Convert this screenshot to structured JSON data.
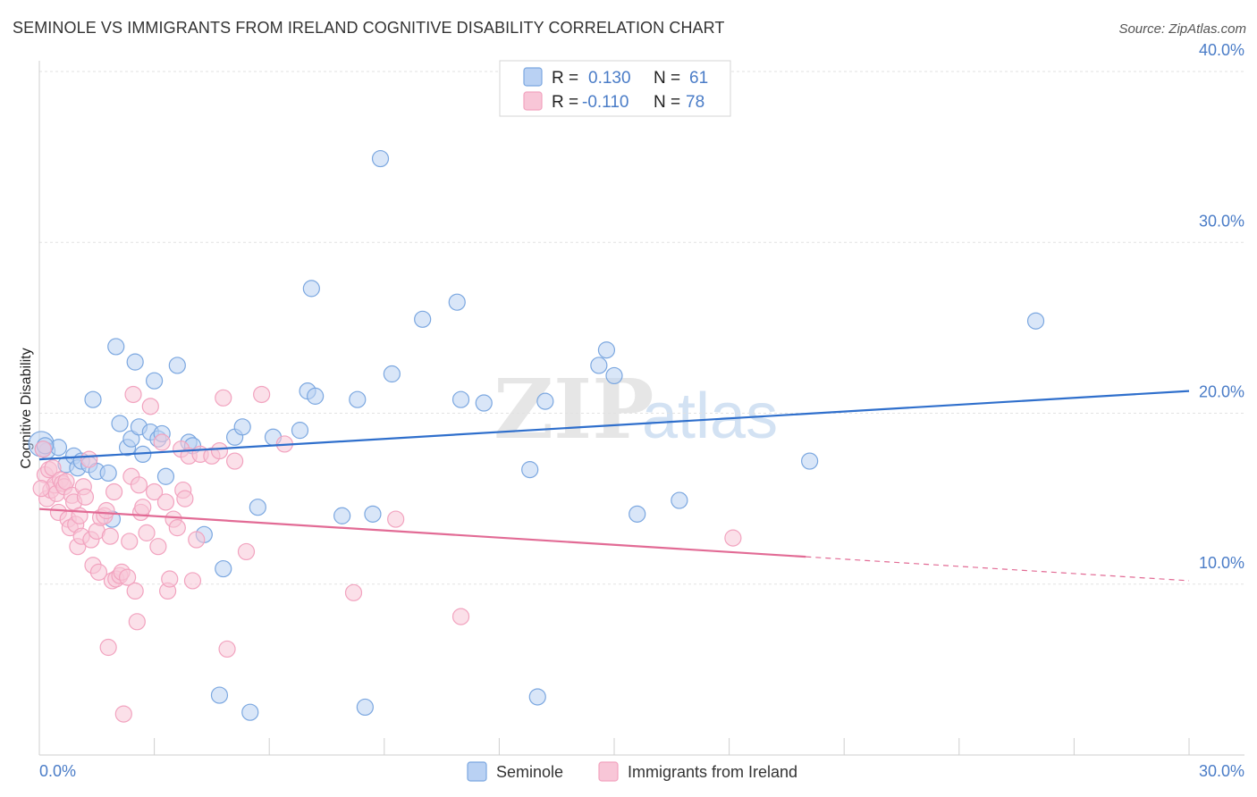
{
  "chart_data": {
    "type": "scatter",
    "title": "SEMINOLE VS IMMIGRANTS FROM IRELAND COGNITIVE DISABILITY CORRELATION CHART",
    "source": "Source: ZipAtlas.com",
    "xlabel": "",
    "ylabel": "Cognitive Disability",
    "xlim": [
      0,
      30
    ],
    "ylim": [
      0,
      40
    ],
    "x_tick_labels": [
      "0.0%",
      "30.0%"
    ],
    "y_ticks": [
      10,
      20,
      30,
      40
    ],
    "y_tick_labels": [
      "10.0%",
      "20.0%",
      "30.0%",
      "40.0%"
    ],
    "grid": true,
    "watermark": {
      "zip": "ZIP",
      "atlas": "atlas"
    },
    "legend_top": [
      {
        "r_label": "R =",
        "r_value": "0.130",
        "n_label": "N =",
        "n_value": "61"
      },
      {
        "r_label": "R =",
        "r_value": "-0.110",
        "n_label": "N =",
        "n_value": "78"
      }
    ],
    "series": [
      {
        "name": "Seminole",
        "color": "#7ba7e0",
        "line_color": "#2f6fcc",
        "trend": {
          "x0": 0,
          "y0": 17.3,
          "x1": 30,
          "y1": 21.3
        },
        "points": [
          [
            0.05,
            18.2
          ],
          [
            0.2,
            17.8
          ],
          [
            0.5,
            18.0
          ],
          [
            0.7,
            17.0
          ],
          [
            0.9,
            17.5
          ],
          [
            1.0,
            16.8
          ],
          [
            1.1,
            17.2
          ],
          [
            1.3,
            17.0
          ],
          [
            1.4,
            20.8
          ],
          [
            1.5,
            16.6
          ],
          [
            1.8,
            16.5
          ],
          [
            1.9,
            13.8
          ],
          [
            2.0,
            23.9
          ],
          [
            2.1,
            19.4
          ],
          [
            2.3,
            18.0
          ],
          [
            2.4,
            18.5
          ],
          [
            2.5,
            23.0
          ],
          [
            2.6,
            19.2
          ],
          [
            2.7,
            17.6
          ],
          [
            2.9,
            18.9
          ],
          [
            3.0,
            21.9
          ],
          [
            3.1,
            18.5
          ],
          [
            3.2,
            18.8
          ],
          [
            3.3,
            16.3
          ],
          [
            3.6,
            22.8
          ],
          [
            3.9,
            18.3
          ],
          [
            4.0,
            18.1
          ],
          [
            4.3,
            12.9
          ],
          [
            4.7,
            3.5
          ],
          [
            4.8,
            10.9
          ],
          [
            5.1,
            18.6
          ],
          [
            5.3,
            19.2
          ],
          [
            5.5,
            2.5
          ],
          [
            5.7,
            14.5
          ],
          [
            6.1,
            18.6
          ],
          [
            6.8,
            19.0
          ],
          [
            7.0,
            21.3
          ],
          [
            7.1,
            27.3
          ],
          [
            7.2,
            21.0
          ],
          [
            7.9,
            14.0
          ],
          [
            8.3,
            20.8
          ],
          [
            8.5,
            2.8
          ],
          [
            8.7,
            14.1
          ],
          [
            8.9,
            34.9
          ],
          [
            9.2,
            22.3
          ],
          [
            10.0,
            25.5
          ],
          [
            10.9,
            26.5
          ],
          [
            11.0,
            20.8
          ],
          [
            11.6,
            20.6
          ],
          [
            12.8,
            16.7
          ],
          [
            13.0,
            3.4
          ],
          [
            13.2,
            20.7
          ],
          [
            14.6,
            22.8
          ],
          [
            14.8,
            23.7
          ],
          [
            15.0,
            22.2
          ],
          [
            15.6,
            14.1
          ],
          [
            16.7,
            14.9
          ],
          [
            20.1,
            17.2
          ],
          [
            26.0,
            25.4
          ],
          [
            0.1,
            17.9
          ],
          [
            0.15,
            18.1
          ]
        ]
      },
      {
        "name": "Immigrants from Ireland",
        "color": "#f2a3bf",
        "line_color": "#e26b95",
        "trend": {
          "x0": 0,
          "y0": 14.4,
          "x1": 20.0,
          "y1": 11.6
        },
        "trend_dash": {
          "x0": 20.0,
          "y0": 11.6,
          "x1": 30,
          "y1": 10.2
        },
        "points": [
          [
            0.1,
            17.9
          ],
          [
            0.15,
            16.4
          ],
          [
            0.2,
            15.0
          ],
          [
            0.25,
            16.7
          ],
          [
            0.3,
            15.5
          ],
          [
            0.35,
            16.8
          ],
          [
            0.4,
            15.8
          ],
          [
            0.45,
            15.3
          ],
          [
            0.5,
            14.2
          ],
          [
            0.55,
            16.1
          ],
          [
            0.6,
            15.9
          ],
          [
            0.65,
            15.7
          ],
          [
            0.7,
            16.0
          ],
          [
            0.75,
            13.8
          ],
          [
            0.8,
            13.3
          ],
          [
            0.85,
            15.2
          ],
          [
            0.9,
            14.8
          ],
          [
            0.95,
            13.5
          ],
          [
            1.0,
            12.2
          ],
          [
            1.05,
            14.0
          ],
          [
            1.1,
            12.8
          ],
          [
            1.15,
            15.7
          ],
          [
            1.2,
            15.1
          ],
          [
            1.3,
            17.3
          ],
          [
            1.35,
            12.6
          ],
          [
            1.4,
            11.1
          ],
          [
            1.5,
            13.1
          ],
          [
            1.55,
            10.7
          ],
          [
            1.6,
            13.9
          ],
          [
            1.7,
            14.0
          ],
          [
            1.75,
            14.3
          ],
          [
            1.8,
            6.3
          ],
          [
            1.85,
            12.8
          ],
          [
            1.9,
            10.2
          ],
          [
            1.95,
            15.4
          ],
          [
            2.0,
            10.3
          ],
          [
            2.1,
            10.5
          ],
          [
            2.15,
            10.7
          ],
          [
            2.2,
            2.4
          ],
          [
            2.3,
            10.4
          ],
          [
            2.35,
            12.5
          ],
          [
            2.4,
            16.3
          ],
          [
            2.45,
            21.1
          ],
          [
            2.5,
            9.6
          ],
          [
            2.55,
            7.8
          ],
          [
            2.6,
            15.8
          ],
          [
            2.65,
            14.2
          ],
          [
            2.7,
            14.5
          ],
          [
            2.8,
            13.0
          ],
          [
            2.9,
            20.4
          ],
          [
            3.0,
            15.4
          ],
          [
            3.1,
            12.2
          ],
          [
            3.2,
            18.3
          ],
          [
            3.3,
            14.8
          ],
          [
            3.35,
            9.6
          ],
          [
            3.4,
            10.3
          ],
          [
            3.5,
            13.8
          ],
          [
            3.6,
            13.3
          ],
          [
            3.7,
            17.9
          ],
          [
            3.75,
            15.5
          ],
          [
            3.8,
            15.0
          ],
          [
            3.9,
            17.5
          ],
          [
            4.0,
            10.2
          ],
          [
            4.1,
            12.6
          ],
          [
            4.2,
            17.6
          ],
          [
            4.5,
            17.5
          ],
          [
            4.7,
            17.8
          ],
          [
            4.8,
            20.9
          ],
          [
            4.9,
            6.2
          ],
          [
            5.1,
            17.2
          ],
          [
            5.4,
            11.9
          ],
          [
            5.8,
            21.1
          ],
          [
            6.4,
            18.2
          ],
          [
            8.2,
            9.5
          ],
          [
            9.3,
            13.8
          ],
          [
            11.0,
            8.1
          ],
          [
            18.1,
            12.7
          ],
          [
            0.05,
            15.6
          ]
        ]
      }
    ]
  }
}
